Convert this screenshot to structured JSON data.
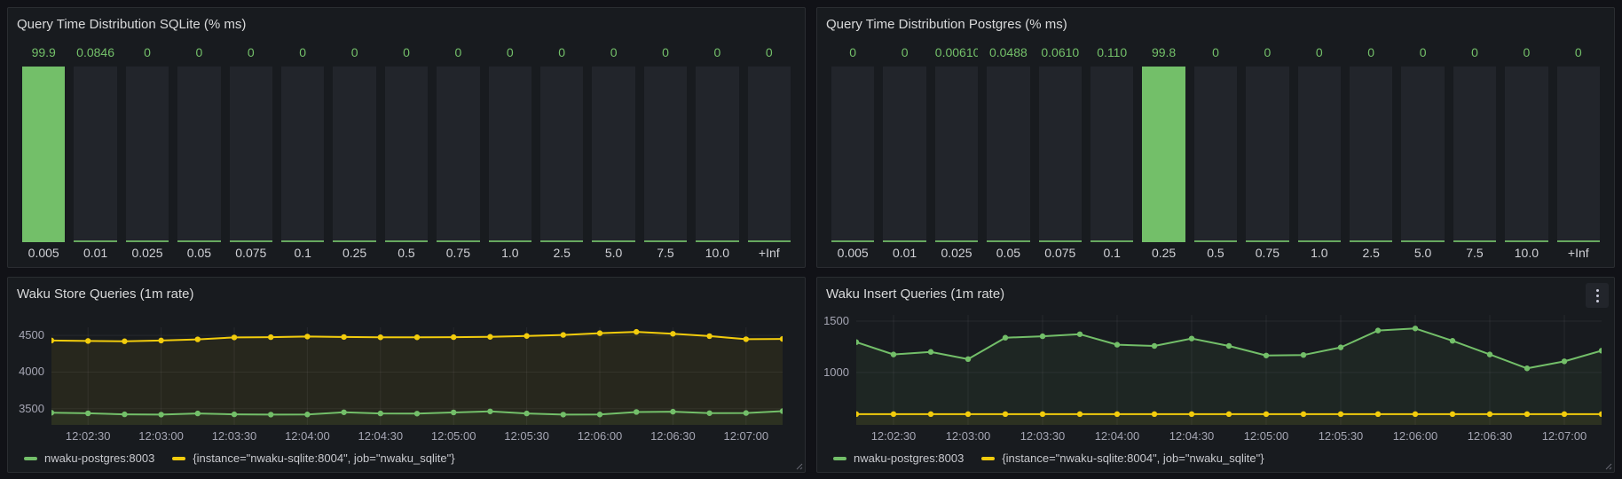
{
  "colors": {
    "green": "#73bf69",
    "yellow": "#f2cc0c",
    "panel_background": "#181b1f",
    "page_background": "#111217",
    "bar_track": "#22252b"
  },
  "chart_data": [
    {
      "type": "bar",
      "title": "Query Time Distribution SQLite (% ms)",
      "categories": [
        "0.005",
        "0.01",
        "0.025",
        "0.05",
        "0.075",
        "0.1",
        "0.25",
        "0.5",
        "0.75",
        "1.0",
        "2.5",
        "5.0",
        "7.5",
        "10.0",
        "+Inf"
      ],
      "values": [
        99.9,
        0.0846,
        0,
        0,
        0,
        0,
        0,
        0,
        0,
        0,
        0,
        0,
        0,
        0,
        0
      ],
      "value_labels": [
        "99.9",
        "0.0846",
        "0",
        "0",
        "0",
        "0",
        "0",
        "0",
        "0",
        "0",
        "0",
        "0",
        "0",
        "0",
        "0"
      ],
      "ylim": [
        0,
        100
      ],
      "bar_color": "#73bf69",
      "xlabel": "",
      "ylabel": ""
    },
    {
      "type": "bar",
      "title": "Query Time Distribution Postgres (% ms)",
      "categories": [
        "0.005",
        "0.01",
        "0.025",
        "0.05",
        "0.075",
        "0.1",
        "0.25",
        "0.5",
        "0.75",
        "1.0",
        "2.5",
        "5.0",
        "7.5",
        "10.0",
        "+Inf"
      ],
      "values": [
        0,
        0,
        0.0061,
        0.0488,
        0.061,
        0.11,
        99.8,
        0,
        0,
        0,
        0,
        0,
        0,
        0,
        0
      ],
      "value_labels": [
        "0",
        "0",
        "0.00610",
        "0.0488",
        "0.0610",
        "0.110",
        "99.8",
        "0",
        "0",
        "0",
        "0",
        "0",
        "0",
        "0",
        "0"
      ],
      "ylim": [
        0,
        100
      ],
      "bar_color": "#73bf69",
      "xlabel": "",
      "ylabel": ""
    },
    {
      "type": "line",
      "title": "Waku Store Queries (1m rate)",
      "x_ticks": [
        "12:02:30",
        "12:03:00",
        "12:03:30",
        "12:04:00",
        "12:04:30",
        "12:05:00",
        "12:05:30",
        "12:06:00",
        "12:06:30",
        "12:07:00"
      ],
      "tick_start": 1,
      "tick_every": 2,
      "ylim": [
        3280,
        4610
      ],
      "y_ticks": [
        3500,
        4000,
        4500
      ],
      "grid": true,
      "legend_position": "bottom",
      "series": [
        {
          "name": "nwaku-postgres:8003",
          "color": "#73bf69",
          "values": [
            3446,
            3438,
            3424,
            3420,
            3436,
            3424,
            3420,
            3422,
            3452,
            3436,
            3434,
            3450,
            3464,
            3436,
            3420,
            3422,
            3456,
            3460,
            3440,
            3442,
            3468
          ]
        },
        {
          "name": "{instance=\"nwaku-sqlite:8004\", job=\"nwaku_sqlite\"}",
          "color": "#f2cc0c",
          "values": [
            4430,
            4424,
            4420,
            4430,
            4446,
            4472,
            4476,
            4484,
            4478,
            4474,
            4474,
            4476,
            4480,
            4492,
            4506,
            4530,
            4548,
            4522,
            4490,
            4448,
            4452
          ]
        }
      ]
    },
    {
      "type": "line",
      "title": "Waku Insert Queries (1m rate)",
      "x_ticks": [
        "12:02:30",
        "12:03:00",
        "12:03:30",
        "12:04:00",
        "12:04:30",
        "12:05:00",
        "12:05:30",
        "12:06:00",
        "12:06:30",
        "12:07:00"
      ],
      "tick_start": 1,
      "tick_every": 2,
      "ylim": [
        490,
        1560
      ],
      "y_ticks": [
        1000,
        1500
      ],
      "grid": true,
      "legend_position": "bottom",
      "series": [
        {
          "name": "nwaku-postgres:8003",
          "color": "#73bf69",
          "values": [
            1295,
            1175,
            1200,
            1130,
            1338,
            1352,
            1372,
            1270,
            1258,
            1330,
            1258,
            1165,
            1170,
            1244,
            1408,
            1428,
            1308,
            1175,
            1040,
            1108,
            1212
          ]
        },
        {
          "name": "{instance=\"nwaku-sqlite:8004\", job=\"nwaku_sqlite\"}",
          "color": "#f2cc0c",
          "values": [
            595,
            595,
            595,
            595,
            595,
            595,
            595,
            595,
            595,
            595,
            595,
            595,
            595,
            595,
            595,
            595,
            595,
            595,
            595,
            595,
            595
          ]
        }
      ]
    }
  ]
}
